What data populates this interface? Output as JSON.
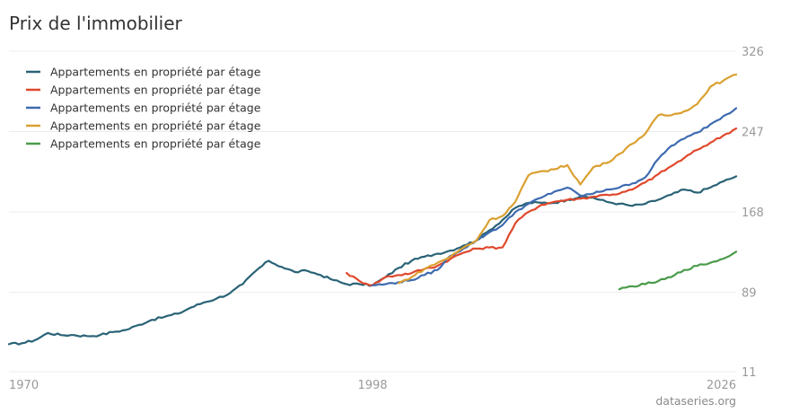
{
  "chart_data": {
    "type": "line",
    "title": "Prix de l'immobilier",
    "xlabel": "",
    "ylabel": "",
    "xlim": [
      1970,
      2026
    ],
    "ylim": [
      11,
      326
    ],
    "x_ticks": [
      "1970",
      "1998",
      "2026"
    ],
    "y_ticks": [
      "326",
      "247",
      "168",
      "89",
      "11"
    ],
    "grid": true,
    "legend_position": "top-left",
    "series": [
      {
        "name": "Appartements en propriété par étage",
        "color": "#2a6377",
        "x": [
          1970,
          1971,
          1972,
          1973,
          1974,
          1975,
          1976,
          1977,
          1978,
          1979,
          1980,
          1981,
          1982,
          1983,
          1984,
          1985,
          1986,
          1987,
          1988,
          1989,
          1990,
          1991,
          1992,
          1993,
          1994,
          1995,
          1996,
          1997,
          1998,
          1999,
          2000,
          2001,
          2002,
          2003,
          2004,
          2005,
          2006,
          2007,
          2008,
          2009,
          2010,
          2011,
          2012,
          2013,
          2014,
          2015,
          2016,
          2017,
          2018,
          2019,
          2020,
          2021,
          2022,
          2023,
          2024,
          2025,
          2026
        ],
        "y": [
          38,
          39,
          42,
          49,
          47,
          47,
          46,
          47,
          50,
          52,
          57,
          62,
          65,
          68,
          74,
          79,
          83,
          88,
          97,
          110,
          120,
          114,
          109,
          110,
          106,
          101,
          97,
          97,
          96,
          104,
          113,
          120,
          124,
          127,
          130,
          135,
          140,
          150,
          160,
          172,
          177,
          177,
          177,
          180,
          183,
          182,
          178,
          176,
          174,
          176,
          180,
          185,
          190,
          187,
          192,
          198,
          203
        ]
      },
      {
        "name": "Appartements en propriété par étage",
        "color": "#e0482c",
        "x": [
          1996,
          1997,
          1998,
          1999,
          2000,
          2001,
          2002,
          2003,
          2004,
          2005,
          2006,
          2007,
          2008,
          2009,
          2010,
          2011,
          2012,
          2013,
          2014,
          2015,
          2016,
          2017,
          2018,
          2019,
          2020,
          2021,
          2022,
          2023,
          2024,
          2025,
          2026
        ],
        "y": [
          108,
          100,
          96,
          104,
          106,
          108,
          112,
          115,
          122,
          128,
          132,
          133,
          133,
          157,
          168,
          175,
          178,
          180,
          181,
          183,
          185,
          186,
          190,
          197,
          205,
          213,
          221,
          229,
          236,
          243,
          250
        ]
      },
      {
        "name": "Appartements en propriété par étage",
        "color": "#3e6bb0",
        "x": [
          1998,
          1999,
          2000,
          2001,
          2002,
          2003,
          2004,
          2005,
          2006,
          2007,
          2008,
          2009,
          2010,
          2011,
          2012,
          2013,
          2014,
          2015,
          2016,
          2017,
          2018,
          2019,
          2020,
          2021,
          2022,
          2023,
          2024,
          2025,
          2026
        ],
        "y": [
          96,
          97,
          99,
          101,
          106,
          111,
          125,
          132,
          140,
          148,
          155,
          168,
          176,
          182,
          188,
          192,
          184,
          186,
          190,
          192,
          196,
          202,
          220,
          233,
          240,
          246,
          254,
          262,
          270
        ]
      },
      {
        "name": "Appartements en propriété par étage",
        "color": "#daa030",
        "x": [
          2000,
          2001,
          2002,
          2003,
          2004,
          2005,
          2006,
          2007,
          2008,
          2009,
          2010,
          2011,
          2012,
          2013,
          2014,
          2015,
          2016,
          2017,
          2018,
          2019,
          2020,
          2021,
          2022,
          2023,
          2024,
          2025,
          2026
        ],
        "y": [
          98,
          104,
          112,
          118,
          124,
          133,
          140,
          160,
          164,
          178,
          204,
          208,
          210,
          214,
          195,
          212,
          216,
          225,
          235,
          245,
          263,
          263,
          267,
          274,
          291,
          297,
          303
        ]
      },
      {
        "name": "Appartements en propriété par étage",
        "color": "#4a9b4a",
        "x": [
          2017,
          2018,
          2019,
          2020,
          2021,
          2022,
          2023,
          2024,
          2025,
          2026
        ],
        "y": [
          92,
          95,
          97,
          100,
          104,
          111,
          115,
          118,
          122,
          129
        ]
      }
    ]
  },
  "watermark": "dataseries.org"
}
